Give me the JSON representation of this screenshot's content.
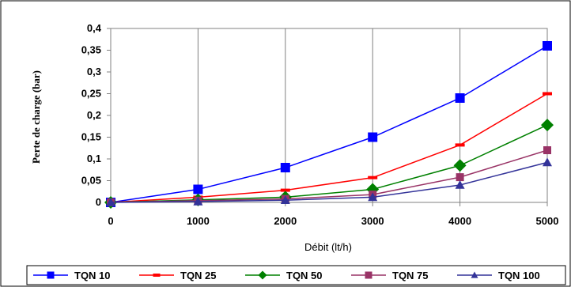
{
  "chart_data": {
    "type": "line",
    "xlabel": "Débit (lt/h)",
    "ylabel": "Perte de charge (bar)",
    "x": [
      0,
      1000,
      2000,
      3000,
      4000,
      5000
    ],
    "x_tick_labels": [
      "0",
      "1000",
      "2000",
      "3000",
      "4000",
      "5000"
    ],
    "y_tick_values": [
      0,
      0.05,
      0.1,
      0.15,
      0.2,
      0.25,
      0.3,
      0.35,
      0.4
    ],
    "y_tick_labels": [
      "0",
      "0,05",
      "0,1",
      "0,15",
      "0,2",
      "0,25",
      "0,3",
      "0,35",
      "0,4"
    ],
    "ylim": [
      0,
      0.4
    ],
    "xlim": [
      0,
      5000
    ],
    "grid": "vertical",
    "legend_position": "bottom",
    "series": [
      {
        "name": "TQN 10",
        "color": "#0000ff",
        "marker": "square",
        "values": [
          0,
          0.03,
          0.08,
          0.15,
          0.24,
          0.36
        ]
      },
      {
        "name": "TQN 25",
        "color": "#ff0000",
        "marker": "dash",
        "values": [
          0,
          0.012,
          0.028,
          0.057,
          0.132,
          0.25
        ]
      },
      {
        "name": "TQN 50",
        "color": "#008000",
        "marker": "diamond",
        "values": [
          0,
          0.006,
          0.012,
          0.03,
          0.085,
          0.178
        ]
      },
      {
        "name": "TQN 75",
        "color": "#993366",
        "marker": "square",
        "values": [
          0,
          0.004,
          0.008,
          0.018,
          0.058,
          0.12
        ]
      },
      {
        "name": "TQN 100",
        "color": "#333399",
        "marker": "triangle",
        "values": [
          0,
          0.002,
          0.005,
          0.012,
          0.04,
          0.092
        ]
      }
    ]
  }
}
